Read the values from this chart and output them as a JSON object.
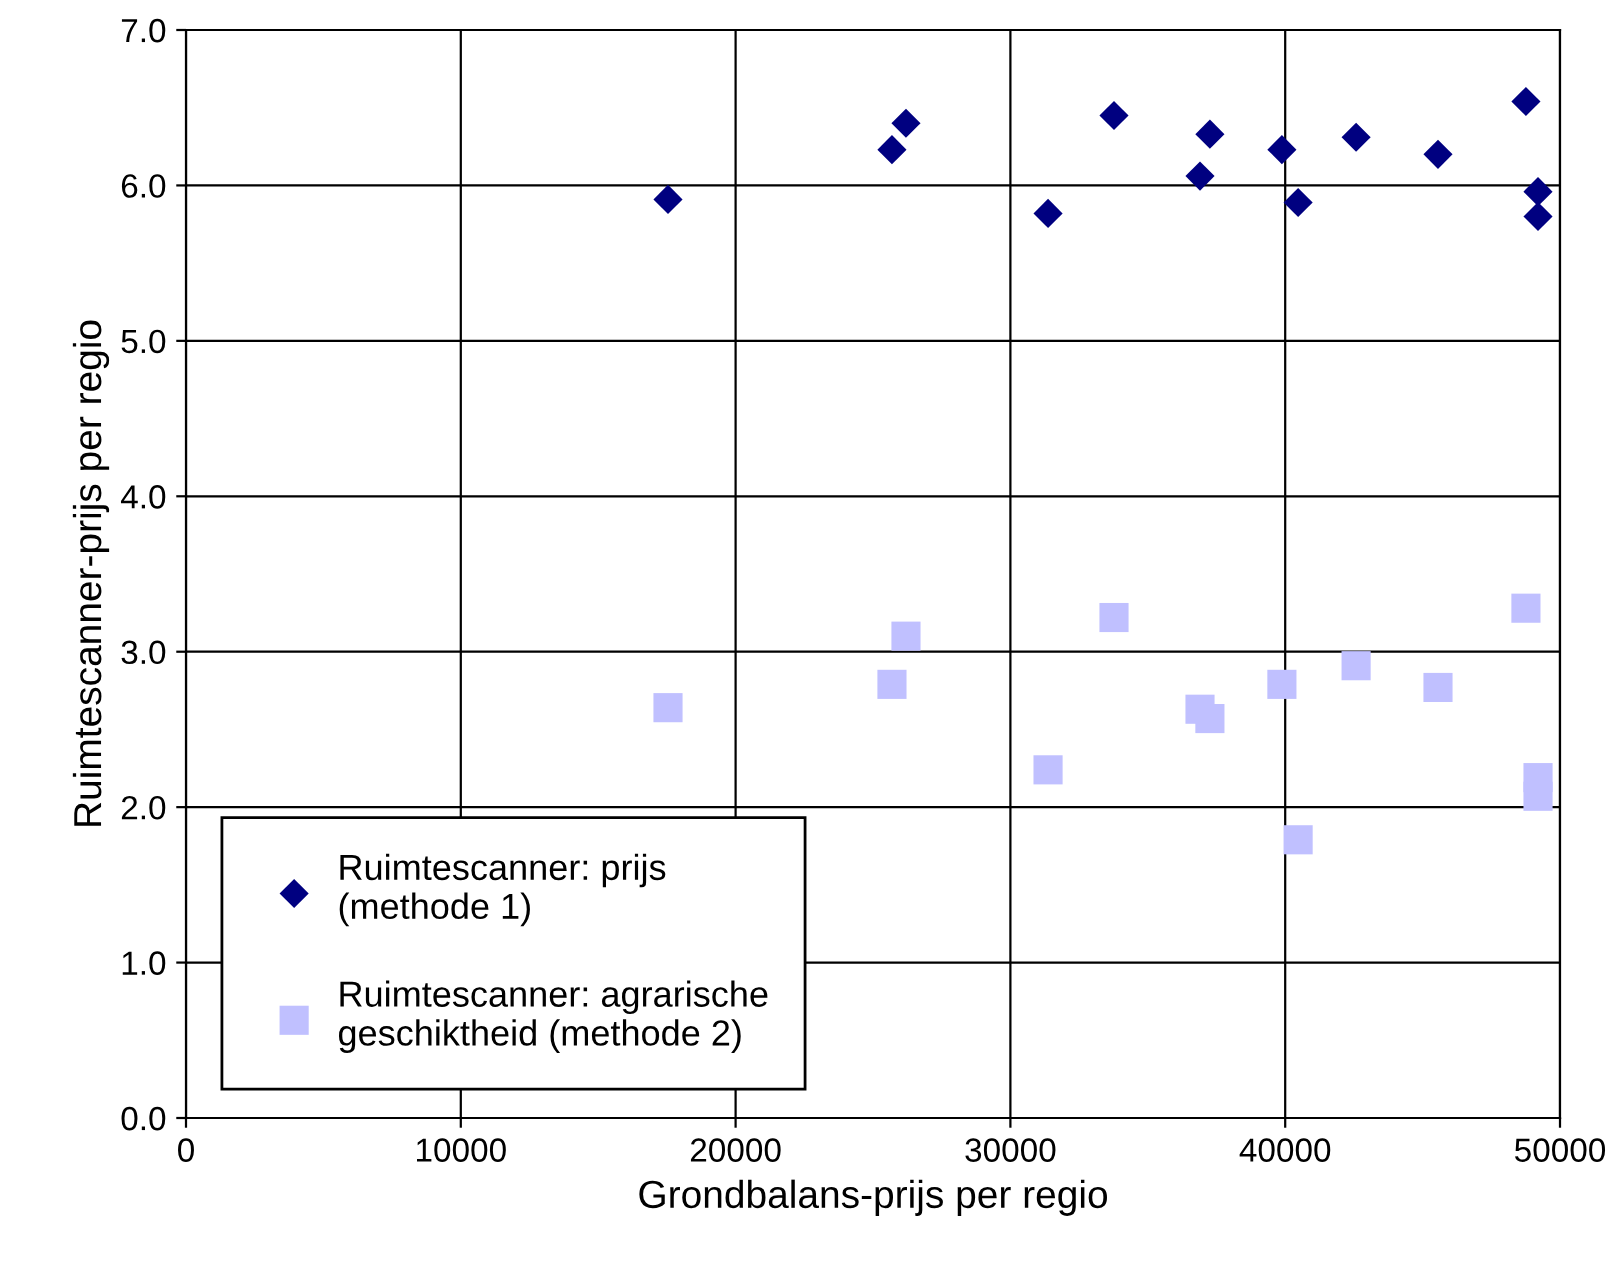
{
  "chart_data": {
    "type": "scatter",
    "xlabel": "Grondbalans-prijs per regio",
    "ylabel": "Ruimtescanner-prijs per regio",
    "xlim": [
      0,
      50000
    ],
    "xticks": [
      0,
      10000,
      20000,
      30000,
      40000,
      50000
    ],
    "ylim": [
      0,
      7
    ],
    "yticks": [
      {
        "value": 0,
        "label": "0.0"
      },
      {
        "value": 1,
        "label": "1.0"
      },
      {
        "value": 2,
        "label": "2.0"
      },
      {
        "value": 3,
        "label": "3.0"
      },
      {
        "value": 4,
        "label": "4.0"
      },
      {
        "value": 5,
        "label": "5.0"
      },
      {
        "value": 6,
        "label": "6.0"
      },
      {
        "value": 7,
        "label": "7.0"
      }
    ],
    "grid": true,
    "legend": "bottom left",
    "series": [
      {
        "name": "Ruimtescanner: prijs\n(methode 1)",
        "color": "#000080",
        "marker": "diamond",
        "x": [
          17540,
          25690,
          26200,
          31370,
          33770,
          36900,
          37260,
          39880,
          40470,
          42580,
          45560,
          48760,
          49200,
          49200
        ],
        "values": [
          5.91,
          6.23,
          6.4,
          5.82,
          6.45,
          6.06,
          6.33,
          6.23,
          5.89,
          6.31,
          6.2,
          6.54,
          5.96,
          5.8
        ]
      },
      {
        "name": "Ruimtescanner: agrarische\ngeschiktheid (methode 2)",
        "color": "#c0c0ff",
        "marker": "square",
        "x": [
          17540,
          25690,
          26200,
          31370,
          33770,
          36900,
          37260,
          39880,
          40470,
          42580,
          45560,
          48760,
          49200,
          49200
        ],
        "values": [
          2.64,
          2.79,
          3.1,
          2.24,
          3.22,
          2.63,
          2.57,
          2.79,
          1.79,
          2.91,
          2.77,
          3.28,
          2.19,
          2.07
        ]
      }
    ]
  }
}
